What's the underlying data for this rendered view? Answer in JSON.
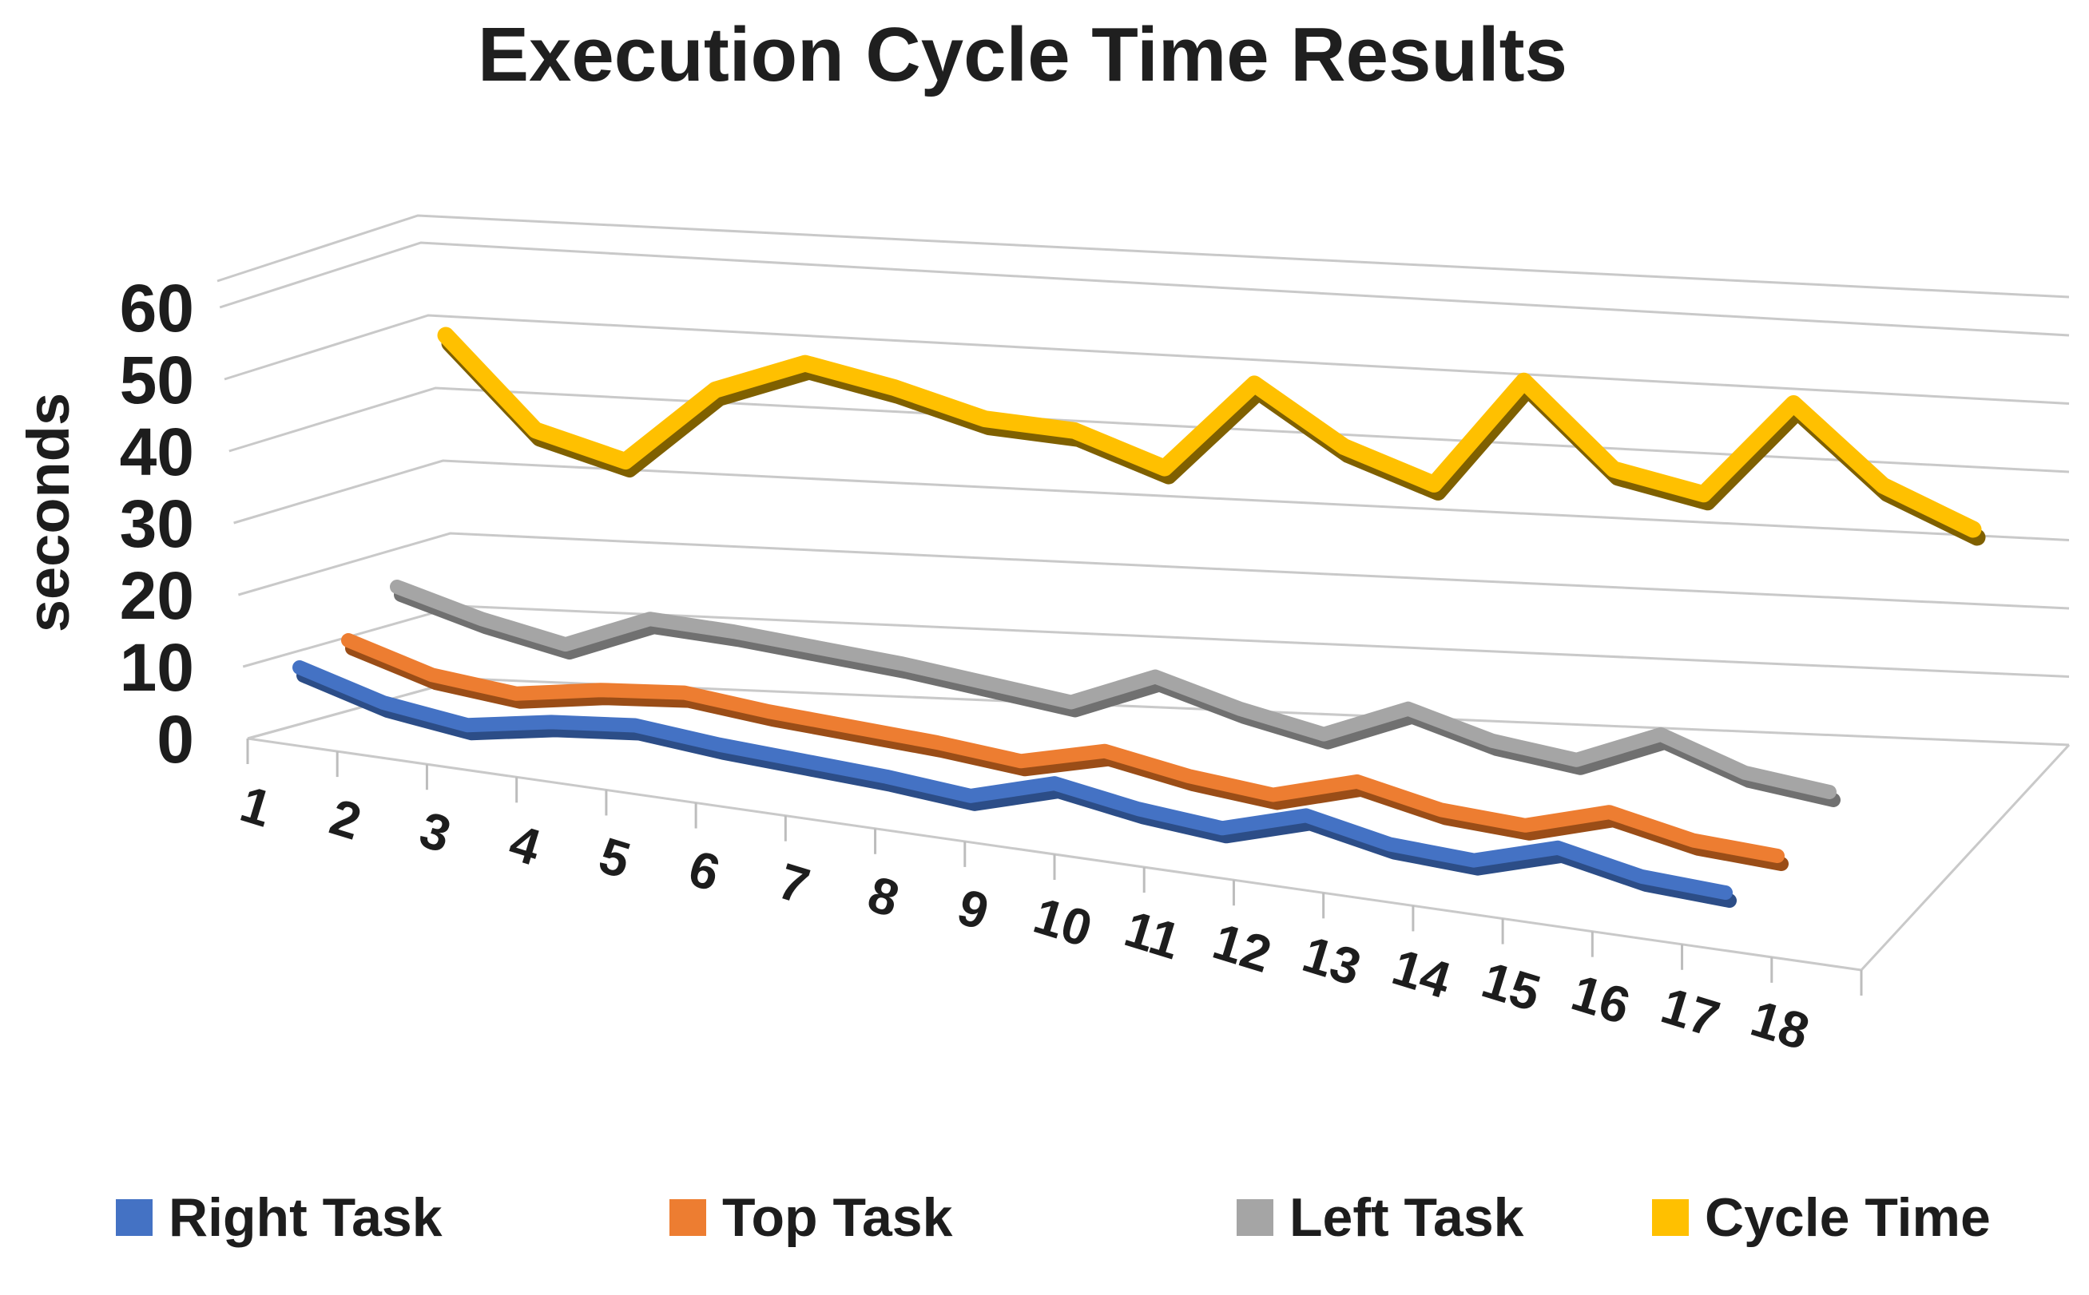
{
  "chart_data": {
    "type": "line",
    "style": "3d-line",
    "title": "Execution Cycle Time Results",
    "ylabel": "seconds",
    "xlabel": "",
    "ylim": [
      0,
      60
    ],
    "y_ticks": [
      0,
      10,
      20,
      30,
      40,
      50,
      60
    ],
    "categories": [
      "1",
      "2",
      "3",
      "4",
      "5",
      "6",
      "7",
      "8",
      "9",
      "10",
      "11",
      "12",
      "13",
      "14",
      "15",
      "16",
      "17",
      "18"
    ],
    "grid": true,
    "legend_position": "bottom",
    "axis_text_color": "#1d1d1d",
    "gridline_color": "#c9c9c9",
    "series": [
      {
        "name": "Right Task",
        "color": "#4472C4",
        "shadow_color": "#2C4D87",
        "values": [
          10,
          6,
          4,
          6,
          7,
          5.5,
          4.5,
          3.5,
          2,
          5.5,
          3,
          1.5,
          5,
          2,
          1,
          4.5,
          1.5,
          0.5
        ]
      },
      {
        "name": "Top Task",
        "color": "#ED7D31",
        "shadow_color": "#9A4D17",
        "values": [
          12,
          8,
          6.5,
          8.5,
          9.5,
          8,
          7,
          6,
          4.5,
          7.5,
          5,
          3.5,
          7,
          4,
          3,
          6.5,
          3.5,
          2.5
        ]
      },
      {
        "name": "Left Task",
        "color": "#A5A5A5",
        "shadow_color": "#707070",
        "values": [
          18,
          14,
          11,
          16,
          15,
          13.5,
          12,
          10,
          8,
          13,
          9,
          6,
          11,
          7,
          5,
          10,
          5,
          3
        ]
      },
      {
        "name": "Cycle Time",
        "color": "#FFC000",
        "shadow_color": "#7F6000",
        "values": [
          55,
          40,
          35,
          46,
          50,
          46,
          41,
          39,
          33,
          46,
          36,
          30,
          46,
          32,
          28,
          42,
          29,
          22
        ]
      }
    ]
  }
}
